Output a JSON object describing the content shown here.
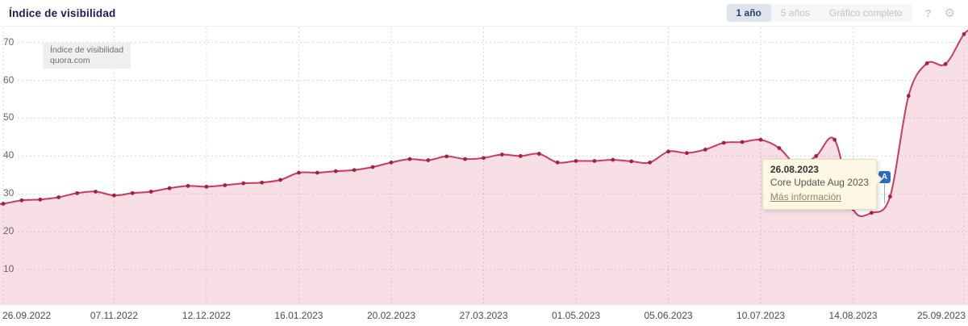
{
  "header": {
    "title": "Índice de visibilidad",
    "range_buttons": [
      {
        "label": "1 año",
        "active": true
      },
      {
        "label": "5 años",
        "active": false
      },
      {
        "label": "Gráfico completo",
        "active": false
      }
    ],
    "help_icon": "?",
    "settings_icon": "⚙"
  },
  "legend": {
    "line1": "Índice de visibilidad",
    "line2": "quora.com"
  },
  "tooltip": {
    "date": "26.08.2023",
    "event": "Core Update Aug 2023",
    "link": "Más información",
    "marker_label": "A"
  },
  "colors": {
    "line": "#cc3a5f",
    "marker": "#a32045",
    "fill": "rgba(204,58,95,0.16)",
    "grid": "#dadada",
    "accent_blue": "#2b6cc4",
    "title_navy": "#1c1c52",
    "tooltip_bg": "#fcf8e3"
  },
  "chart_data": {
    "type": "area",
    "title": "Índice de visibilidad",
    "series_name": "quora.com",
    "x_interval": "weekly",
    "x_tick_labels": [
      "26.09.2022",
      "07.11.2022",
      "12.12.2022",
      "16.01.2023",
      "20.02.2023",
      "27.03.2023",
      "01.05.2023",
      "05.06.2023",
      "10.07.2023",
      "14.08.2023",
      "25.09.2023"
    ],
    "x_tick_week_index": [
      0,
      6,
      11,
      16,
      21,
      26,
      31,
      36,
      41,
      46,
      52
    ],
    "y_ticks": [
      10,
      20,
      30,
      40,
      50,
      60,
      70
    ],
    "ylim": [
      0,
      74
    ],
    "grid": true,
    "values": [
      27.4,
      28.3,
      28.5,
      29.1,
      30.2,
      30.6,
      29.6,
      30.2,
      30.6,
      31.5,
      32.1,
      31.9,
      32.3,
      32.8,
      33.0,
      33.7,
      35.6,
      35.6,
      36.0,
      36.3,
      37.1,
      38.3,
      39.2,
      38.9,
      39.9,
      39.2,
      39.5,
      40.4,
      40.0,
      40.6,
      38.3,
      38.7,
      38.7,
      39.0,
      38.6,
      38.3,
      41.2,
      40.8,
      41.7,
      43.5,
      43.7,
      44.3,
      42.1,
      37.5,
      40.0,
      44.3,
      26.0,
      25.0,
      29.3,
      55.9,
      64.5,
      64.3,
      72.2
    ],
    "annotation": {
      "label": "A",
      "date": "26.08.2023",
      "event": "Core Update Aug 2023",
      "link_text": "Más información",
      "week_index": 48
    }
  }
}
